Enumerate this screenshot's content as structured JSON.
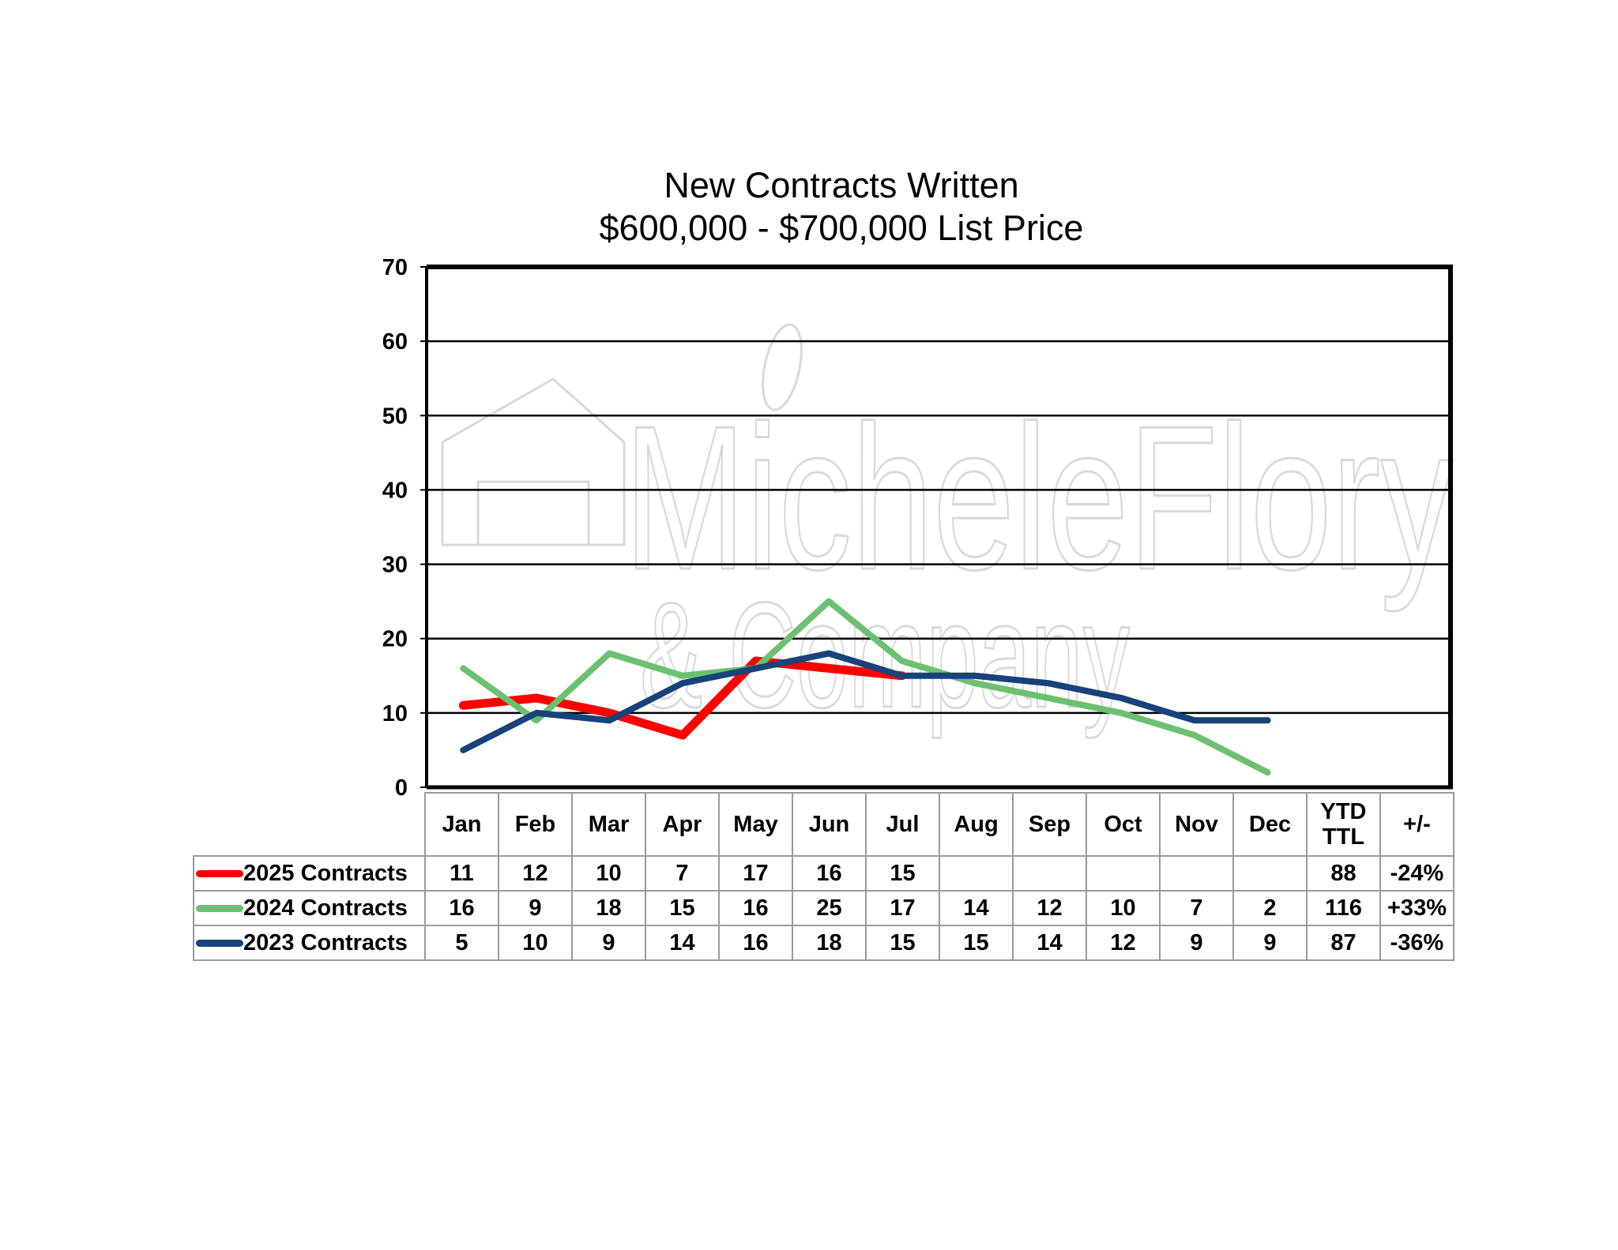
{
  "title": "New Contracts Written",
  "subtitle": "$600,000 - $700,000 List Price",
  "watermark": {
    "line1": "MicheleFlory",
    "line2": "& Company"
  },
  "chart_data": {
    "type": "line",
    "title": "New Contracts Written",
    "subtitle": "$600,000 - $700,000 List Price",
    "categories": [
      "Jan",
      "Feb",
      "Mar",
      "Apr",
      "May",
      "Jun",
      "Jul",
      "Aug",
      "Sep",
      "Oct",
      "Nov",
      "Dec"
    ],
    "yticks": [
      "0",
      "10",
      "20",
      "30",
      "40",
      "50",
      "60",
      "70"
    ],
    "ylim": [
      0,
      70
    ],
    "grid": true,
    "legend_placement": "table-left",
    "series": [
      {
        "name": "2025 Contracts",
        "color": "#ff0000",
        "values": [
          11,
          12,
          10,
          7,
          17,
          16,
          15,
          null,
          null,
          null,
          null,
          null
        ]
      },
      {
        "name": "2024 Contracts",
        "color": "#6cc070",
        "values": [
          16,
          9,
          18,
          15,
          16,
          25,
          17,
          14,
          12,
          10,
          7,
          2
        ]
      },
      {
        "name": "2023 Contracts",
        "color": "#17427a",
        "values": [
          5,
          10,
          9,
          14,
          16,
          18,
          15,
          15,
          14,
          12,
          9,
          9
        ]
      }
    ]
  },
  "table": {
    "extra_headers": [
      "YTD\nTTL",
      "+/-"
    ],
    "ytd_header_line1": "YTD",
    "ytd_header_line2": "TTL",
    "change_header": "+/-",
    "rows": [
      {
        "label": "2025 Contracts",
        "cells": [
          "11",
          "12",
          "10",
          "7",
          "17",
          "16",
          "15",
          "",
          "",
          "",
          "",
          ""
        ],
        "ytd": "88",
        "change": "-24%"
      },
      {
        "label": "2024 Contracts",
        "cells": [
          "16",
          "9",
          "18",
          "15",
          "16",
          "25",
          "17",
          "14",
          "12",
          "10",
          "7",
          "2"
        ],
        "ytd": "116",
        "change": "+33%"
      },
      {
        "label": "2023 Contracts",
        "cells": [
          "5",
          "10",
          "9",
          "14",
          "16",
          "18",
          "15",
          "15",
          "14",
          "12",
          "9",
          "9"
        ],
        "ytd": "87",
        "change": "-36%"
      }
    ]
  }
}
